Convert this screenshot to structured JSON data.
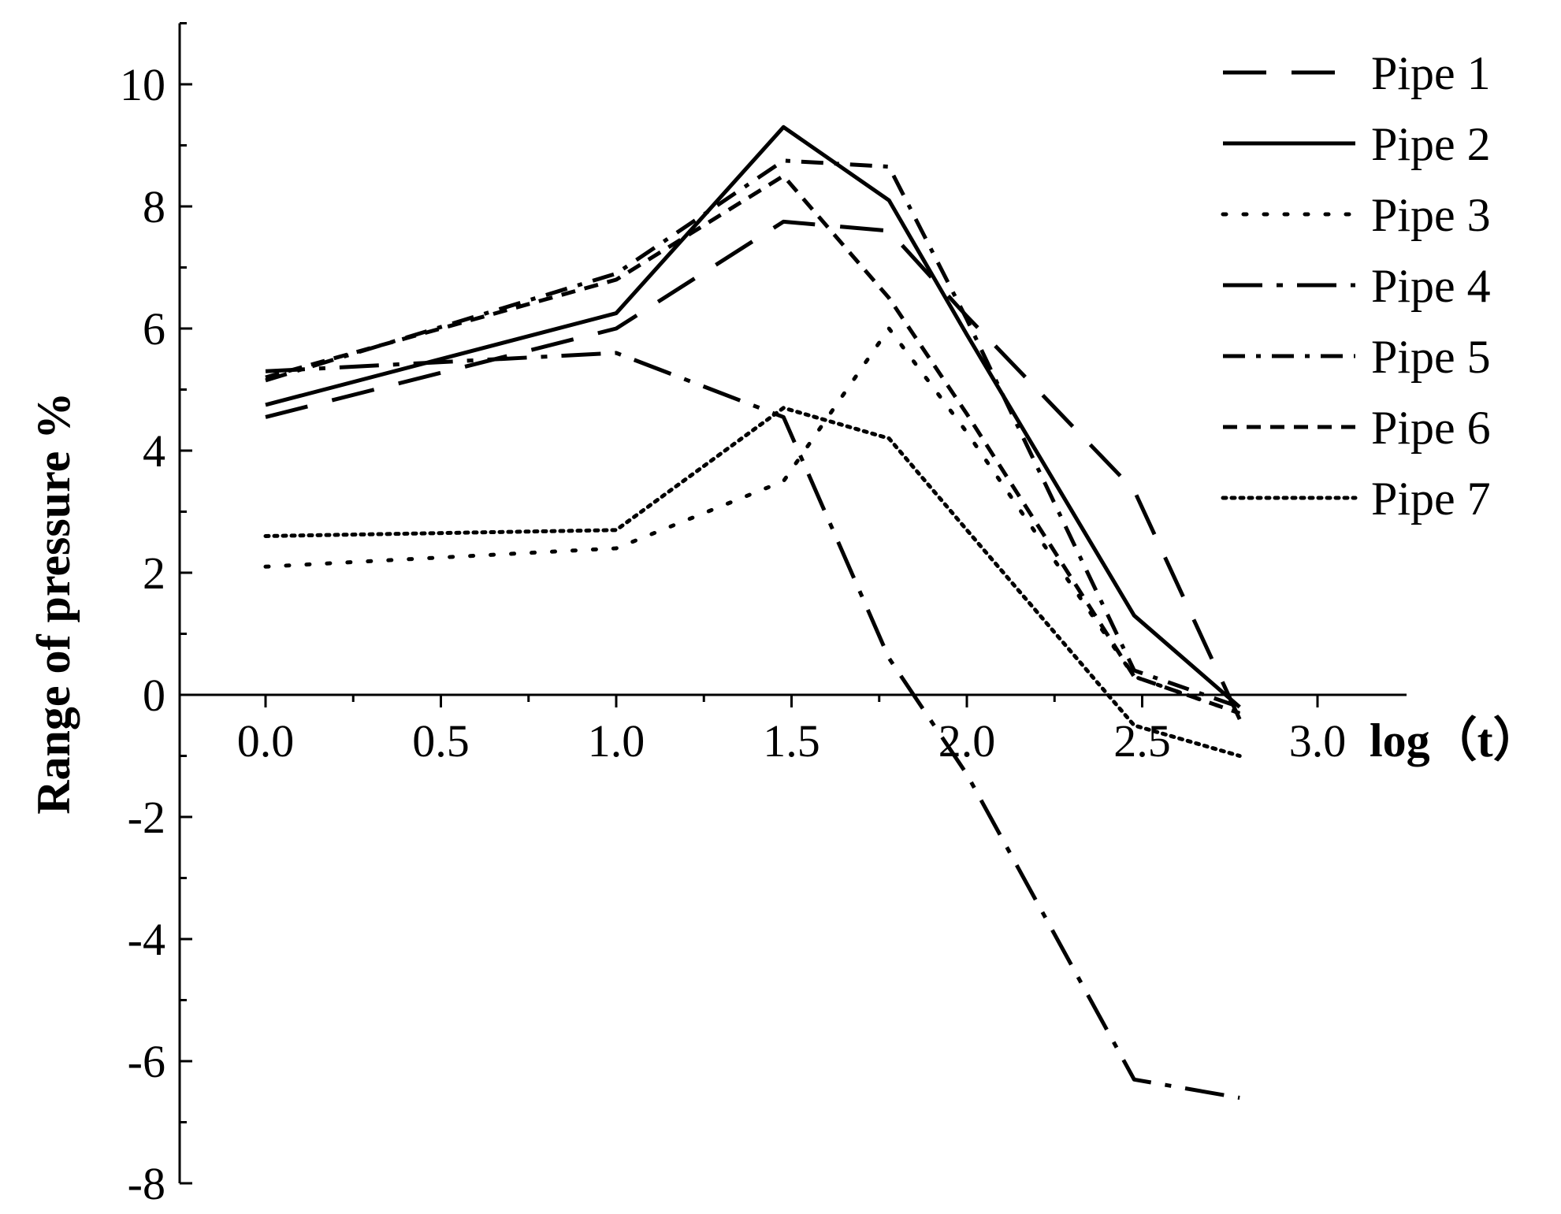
{
  "chart_data": {
    "type": "line",
    "title": "",
    "xlabel": "log（t）",
    "ylabel": "Range of pressure %",
    "xlim": [
      -0.25,
      3.05
    ],
    "ylim": [
      -8,
      11
    ],
    "x_ticks": [
      "0.0",
      "0.5",
      "1.0",
      "1.5",
      "2.0",
      "2.5",
      "3.0"
    ],
    "y_ticks": [
      "10",
      "8",
      "6",
      "4",
      "2",
      "0",
      "-2",
      "-4",
      "-6",
      "-8"
    ],
    "grid": false,
    "legend_position": "top-right",
    "x": [
      0.0,
      1.0,
      1.477,
      1.778,
      2.0,
      2.477,
      2.778
    ],
    "series": [
      {
        "name": "Pipe 1",
        "dash": "55,32",
        "values": [
          4.55,
          6.0,
          7.75,
          7.6,
          6.2,
          3.35,
          -0.4
        ]
      },
      {
        "name": "Pipe 2",
        "dash": "",
        "values": [
          4.75,
          6.25,
          9.3,
          8.1,
          5.9,
          1.3,
          -0.2
        ]
      },
      {
        "name": "Pipe 3",
        "dash": "4,22",
        "values": [
          2.1,
          2.4,
          3.5,
          6.0,
          4.3,
          0.3,
          -0.3
        ]
      },
      {
        "name": "Pipe 4",
        "dash": "50,18,8,18",
        "values": [
          5.3,
          5.6,
          4.55,
          0.6,
          -1.3,
          -6.3,
          -6.6
        ]
      },
      {
        "name": "Pipe 5",
        "dash": "28,14,6,14",
        "values": [
          5.15,
          6.9,
          8.75,
          8.65,
          6.15,
          0.4,
          -0.2
        ]
      },
      {
        "name": "Pipe 6",
        "dash": "18,12",
        "values": [
          5.2,
          6.8,
          8.5,
          6.5,
          4.6,
          0.3,
          -0.3
        ]
      },
      {
        "name": "Pipe 7",
        "dash": "4,7",
        "values": [
          2.6,
          2.7,
          4.7,
          4.2,
          2.7,
          -0.5,
          -1.0
        ]
      }
    ]
  }
}
